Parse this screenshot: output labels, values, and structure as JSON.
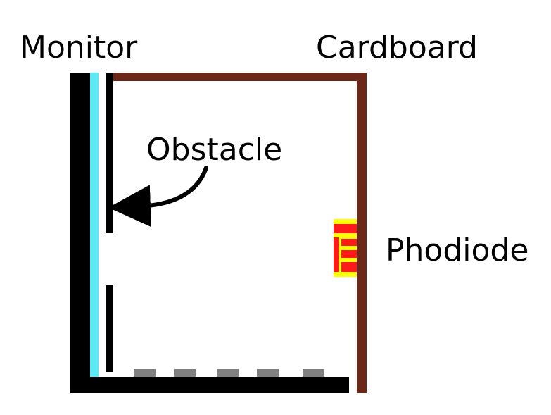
{
  "labels": {
    "monitor": "Monitor",
    "cardboard": "Cardboard",
    "obstacle": "Obstacle",
    "photodiode": "Phodiode"
  },
  "colors": {
    "monitor_body": "#000000",
    "monitor_screen": "#5ce8f5",
    "cardboard": "#6b2717",
    "obstacle": "#000000",
    "floor_pads": "#808080",
    "photodiode_frame": "#ffff00",
    "photodiode_stripes": "#ff1a1a",
    "background": "#ffffff"
  },
  "icons": {
    "arrow": "curved-arrow-icon"
  }
}
